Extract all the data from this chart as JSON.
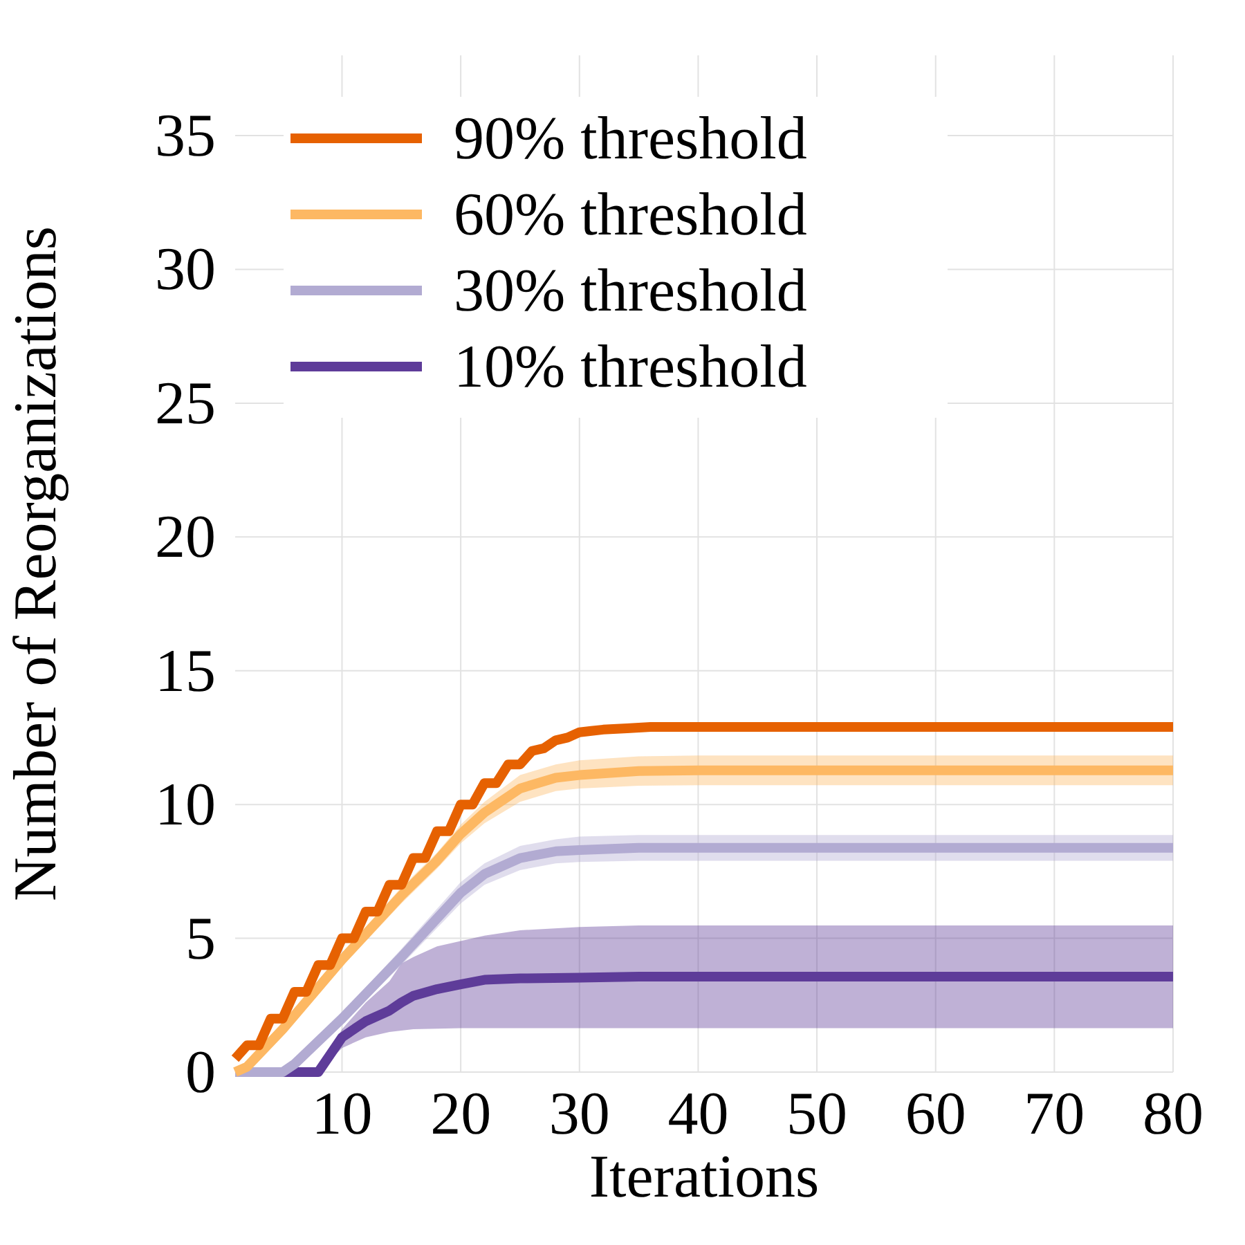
{
  "chart_data": {
    "type": "line",
    "xlabel": "Iterations",
    "ylabel": "Number of Reorganizations",
    "xlim": [
      1,
      80
    ],
    "ylim": [
      0,
      38
    ],
    "xticks": [
      10,
      20,
      30,
      40,
      50,
      60,
      70,
      80
    ],
    "yticks": [
      0,
      5,
      10,
      15,
      20,
      25,
      30,
      35
    ],
    "grid": true,
    "legend": "top left",
    "line_style": "solid",
    "marker": "none",
    "series": [
      {
        "name": "90% threshold",
        "color": "#e66101",
        "x": [
          1,
          2,
          3,
          4,
          5,
          6,
          7,
          8,
          9,
          10,
          11,
          12,
          13,
          14,
          15,
          16,
          17,
          18,
          19,
          20,
          21,
          22,
          23,
          24,
          25,
          26,
          27,
          28,
          29,
          30,
          31,
          32,
          34,
          36,
          80
        ],
        "values": [
          0.5,
          1,
          1,
          2,
          2,
          3,
          3,
          4,
          4,
          5,
          5,
          6,
          6,
          7,
          7,
          8,
          8,
          9,
          9,
          10,
          10,
          10.8,
          10.8,
          11.5,
          11.5,
          12,
          12.1,
          12.4,
          12.5,
          12.7,
          12.75,
          12.8,
          12.85,
          12.9,
          12.9
        ]
      },
      {
        "name": "60% threshold",
        "color": "#fdb863",
        "x": [
          1,
          2,
          5,
          10,
          15,
          18,
          20,
          22,
          25,
          28,
          30,
          35,
          40,
          80
        ],
        "values": [
          0,
          0.2,
          1.6,
          4.2,
          6.6,
          7.9,
          8.9,
          9.7,
          10.6,
          11.0,
          11.1,
          11.25,
          11.28,
          11.28
        ],
        "lower": [
          0,
          0,
          1.4,
          3.95,
          6.3,
          7.6,
          8.55,
          9.3,
          10.1,
          10.5,
          10.6,
          10.7,
          10.72,
          10.72
        ],
        "upper": [
          0,
          0.4,
          1.8,
          4.45,
          6.9,
          8.2,
          9.25,
          10.1,
          11.1,
          11.5,
          11.65,
          11.8,
          11.83,
          11.83
        ]
      },
      {
        "name": "30% threshold",
        "color": "#b2abd2",
        "x": [
          1,
          5,
          6,
          10,
          15,
          20,
          22,
          25,
          28,
          30,
          35,
          40,
          80
        ],
        "values": [
          0,
          0,
          0.3,
          2.0,
          4.3,
          6.7,
          7.4,
          8.0,
          8.25,
          8.3,
          8.38,
          8.38,
          8.38
        ],
        "lower": [
          0,
          0,
          0.1,
          1.8,
          4.0,
          6.3,
          7.0,
          7.55,
          7.8,
          7.85,
          7.9,
          7.9,
          7.9
        ],
        "upper": [
          0,
          0,
          0.5,
          2.2,
          4.6,
          7.1,
          7.8,
          8.45,
          8.7,
          8.8,
          8.86,
          8.86,
          8.86
        ]
      },
      {
        "name": "10% threshold",
        "color": "#5e3c99",
        "x": [
          1,
          8,
          10,
          12,
          14,
          15,
          16,
          18,
          20,
          22,
          25,
          30,
          35,
          80
        ],
        "values": [
          0,
          0,
          1.3,
          1.9,
          2.3,
          2.6,
          2.85,
          3.1,
          3.28,
          3.45,
          3.5,
          3.53,
          3.57,
          3.57
        ],
        "lower": [
          0,
          0,
          0.9,
          1.3,
          1.5,
          1.55,
          1.6,
          1.62,
          1.64,
          1.64,
          1.64,
          1.64,
          1.64,
          1.64
        ],
        "upper": [
          0,
          0,
          1.6,
          2.6,
          3.4,
          4.06,
          4.3,
          4.7,
          4.9,
          5.1,
          5.3,
          5.42,
          5.48,
          5.48
        ]
      }
    ]
  }
}
